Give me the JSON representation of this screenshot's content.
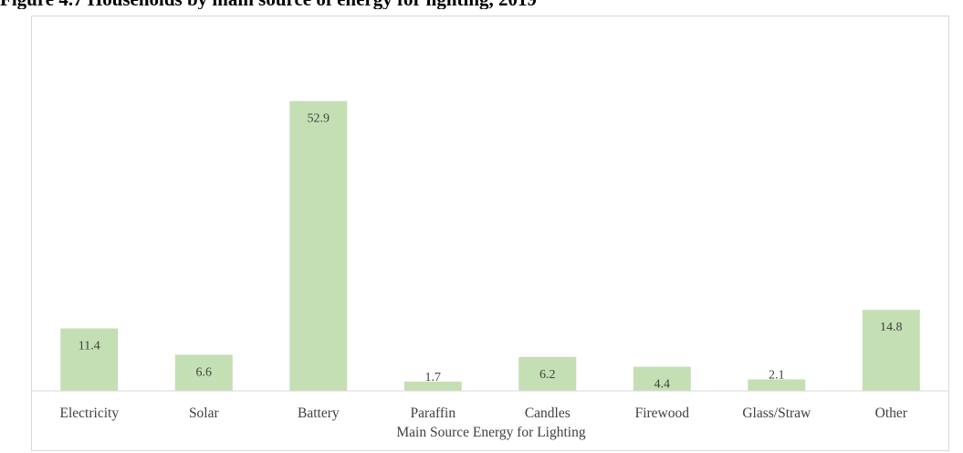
{
  "figure": {
    "title": "Figure 4.7 Households by main source of energy for lighting, 2019"
  },
  "chart_data": {
    "type": "bar",
    "title": "",
    "xlabel": "Main Source Energy for Lighting",
    "ylabel": "",
    "categories": [
      "Electricity",
      "Solar",
      "Battery",
      "Paraffin",
      "Candles",
      "Firewood",
      "Glass/Straw",
      "Other"
    ],
    "values": [
      11.4,
      6.6,
      52.9,
      1.7,
      6.2,
      4.4,
      2.1,
      14.8
    ],
    "ylim": [
      0,
      60
    ],
    "grid": false,
    "legend": "none",
    "bar_color": "#c5dfb4",
    "data_labels": true
  }
}
